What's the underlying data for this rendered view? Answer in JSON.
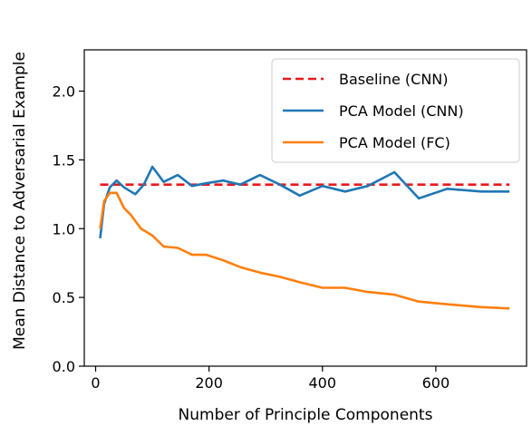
{
  "chart_data": {
    "type": "line",
    "title": "",
    "xlabel": "Number of Principle Components",
    "ylabel": "Mean Distance to Adversarial Example",
    "xlim": [
      -20,
      760
    ],
    "ylim": [
      0.0,
      2.3
    ],
    "xticks": [
      0,
      200,
      400,
      600
    ],
    "yticks": [
      0.0,
      0.5,
      1.0,
      1.5,
      2.0
    ],
    "xtick_labels": [
      "0",
      "200",
      "400",
      "600"
    ],
    "ytick_labels": [
      "0.0",
      "0.5",
      "1.0",
      "1.5",
      "2.0"
    ],
    "grid": false,
    "legend_position": "top-right",
    "series": [
      {
        "name": "Baseline (CNN)",
        "color": "#e8191a",
        "style": "dashed",
        "x": [
          8,
          730
        ],
        "y": [
          1.32,
          1.32
        ]
      },
      {
        "name": "PCA Model (CNN)",
        "color": "#1f77b4",
        "style": "solid",
        "x": [
          8,
          15,
          25,
          37,
          50,
          70,
          85,
          100,
          120,
          145,
          170,
          195,
          225,
          255,
          290,
          325,
          360,
          400,
          440,
          480,
          527,
          570,
          620,
          680,
          730
        ],
        "y": [
          0.93,
          1.18,
          1.3,
          1.35,
          1.3,
          1.25,
          1.32,
          1.45,
          1.34,
          1.39,
          1.31,
          1.33,
          1.35,
          1.32,
          1.39,
          1.32,
          1.24,
          1.31,
          1.27,
          1.31,
          1.41,
          1.22,
          1.29,
          1.27,
          1.27
        ]
      },
      {
        "name": "PCA Model (FC)",
        "color": "#ff7f0e",
        "style": "solid",
        "x": [
          8,
          15,
          25,
          37,
          50,
          62,
          80,
          100,
          120,
          145,
          170,
          195,
          225,
          255,
          290,
          325,
          360,
          400,
          440,
          480,
          527,
          570,
          620,
          680,
          730
        ],
        "y": [
          1.0,
          1.2,
          1.26,
          1.26,
          1.15,
          1.1,
          1.0,
          0.95,
          0.87,
          0.86,
          0.81,
          0.81,
          0.77,
          0.72,
          0.68,
          0.65,
          0.61,
          0.57,
          0.57,
          0.54,
          0.52,
          0.47,
          0.45,
          0.43,
          0.42
        ]
      }
    ]
  }
}
